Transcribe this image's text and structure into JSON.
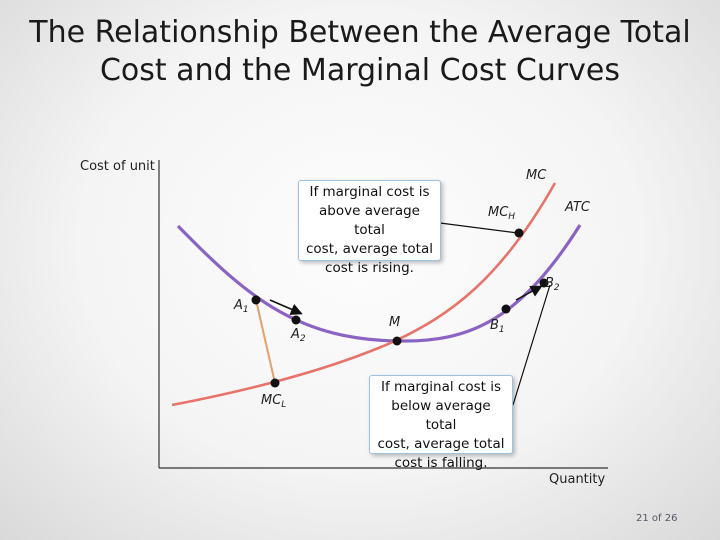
{
  "title": {
    "line1": "The Relationship Between the Average Total",
    "line2": "Cost and the Marginal Cost Curves"
  },
  "axes": {
    "y_label": "Cost of unit",
    "x_label": "Quantity"
  },
  "curves": {
    "mc_label": "MC",
    "atc_label": "ATC",
    "mc_color": "#e8736a",
    "atc_color": "#8b63c2"
  },
  "points": {
    "a1": {
      "base": "A",
      "sub": "1"
    },
    "a2": {
      "base": "A",
      "sub": "2"
    },
    "m": "M",
    "b1": {
      "base": "B",
      "sub": "1"
    },
    "b2": {
      "base": "B",
      "sub": "2"
    },
    "mch": {
      "base": "MC",
      "sub": "H"
    },
    "mcl": {
      "base": "MC",
      "sub": "L"
    }
  },
  "callouts": {
    "rising": {
      "line1": "If marginal cost is",
      "line2": "above average total",
      "line3": "cost, average total",
      "line4": "cost is rising."
    },
    "falling": {
      "line1": "If marginal cost is",
      "line2": "below average total",
      "line3": "cost, average total",
      "line4": "cost is falling."
    }
  },
  "page": {
    "current": "21",
    "of": "of",
    "total": "26"
  }
}
